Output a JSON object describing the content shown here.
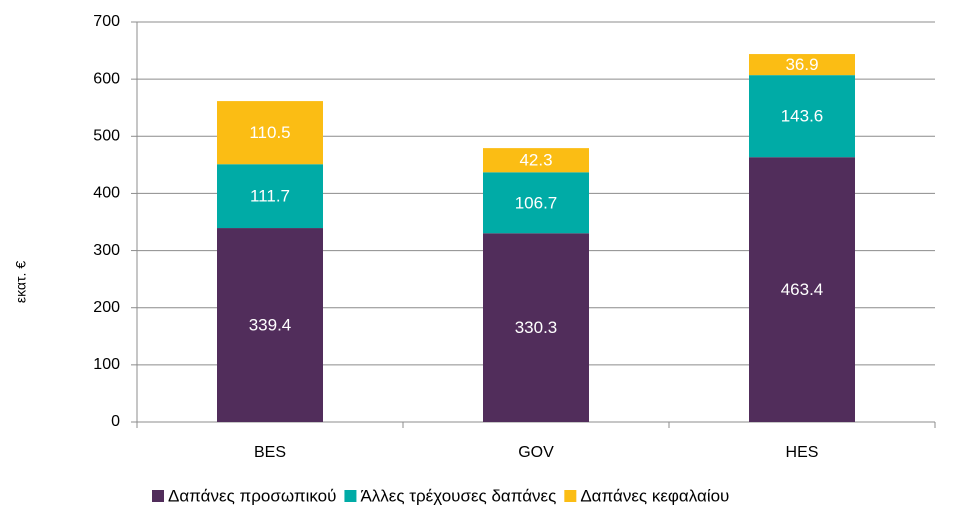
{
  "chart_data": {
    "type": "bar",
    "stacked": true,
    "y_label": "εκατ. €",
    "categories": [
      "BES",
      "GOV",
      "HES"
    ],
    "series": [
      {
        "name": "Δαπάνες προσωπικού",
        "color": "#512d5b",
        "values": [
          339.4,
          330.3,
          463.4
        ]
      },
      {
        "name": "Άλλες τρέχουσες δαπάνες",
        "color": "#00aba6",
        "values": [
          111.7,
          106.7,
          143.6
        ]
      },
      {
        "name": "Δαπάνες κεφαλαίου",
        "color": "#fbbd14",
        "values": [
          110.5,
          42.3,
          36.9
        ]
      }
    ],
    "ylim": [
      0,
      700
    ],
    "yticks": [
      0,
      100,
      200,
      300,
      400,
      500,
      600,
      700
    ],
    "grid": true,
    "legend": "bottom"
  }
}
